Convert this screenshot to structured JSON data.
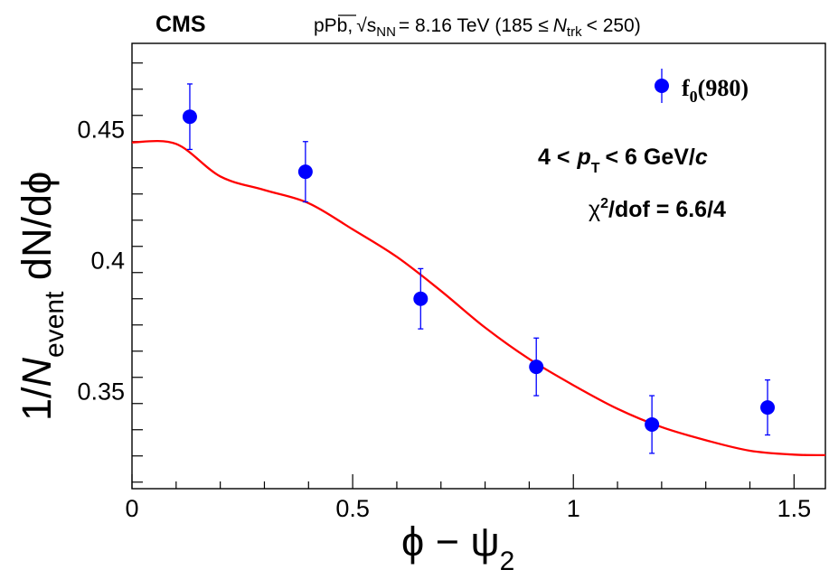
{
  "header": {
    "experiment": "CMS",
    "system": "pPb,",
    "sqrt_symbol": "√",
    "s_base": "s",
    "s_sub": "NN",
    "energy": "= 8.16 TeV (185 ≤",
    "n_var": "N",
    "n_sub": "trk",
    "n_bound": "< 250)"
  },
  "legend": {
    "entry": "f",
    "entry_sub": "0",
    "entry_tail": "(980)"
  },
  "annotations": {
    "pt_lo": "4 <",
    "pt_var": "p",
    "pt_sub": "T",
    "pt_hi": "< 6 GeV/",
    "pt_unit": "c",
    "chi2_sym": "χ",
    "chi2_sup": "2",
    "chi2_text": "/dof = 6.6/4"
  },
  "axes": {
    "ylabel_prefix": "1/",
    "ylabel_var": "N",
    "ylabel_sub": "event",
    "ylabel_rest": " dN/dϕ",
    "xlabel_main": "ϕ − ψ",
    "xlabel_sub": "2"
  },
  "chart_data": {
    "type": "scatter",
    "series": [
      {
        "name": "f0(980)",
        "color": "#0000ff",
        "x": [
          0.131,
          0.393,
          0.654,
          0.916,
          1.178,
          1.44
        ],
        "y": [
          0.4545,
          0.4335,
          0.385,
          0.359,
          0.337,
          0.3435
        ],
        "yerr": [
          0.0125,
          0.0115,
          0.0115,
          0.011,
          0.011,
          0.0105
        ]
      }
    ],
    "fit": {
      "color": "#ff0000",
      "x": [
        0.0,
        0.1,
        0.2,
        0.3,
        0.4,
        0.5,
        0.6,
        0.7,
        0.8,
        0.9,
        1.0,
        1.1,
        1.2,
        1.3,
        1.4,
        1.5,
        1.571
      ],
      "y": [
        0.4447,
        0.4441,
        0.4317,
        0.4265,
        0.4215,
        0.4115,
        0.401,
        0.388,
        0.374,
        0.362,
        0.352,
        0.343,
        0.336,
        0.331,
        0.327,
        0.3255,
        0.3253
      ]
    },
    "xticks": [
      0,
      0.5,
      1,
      1.5
    ],
    "xtick_labels": [
      "0",
      "0.5",
      "1",
      "1.5"
    ],
    "yticks": [
      0.35,
      0.4,
      0.45
    ],
    "ytick_labels": [
      "0.35",
      "0.4",
      "0.45"
    ],
    "xlim": [
      0,
      1.571
    ],
    "ylim": [
      0.3125,
      0.4825
    ],
    "legend_position": "top-right",
    "grid": false
  }
}
